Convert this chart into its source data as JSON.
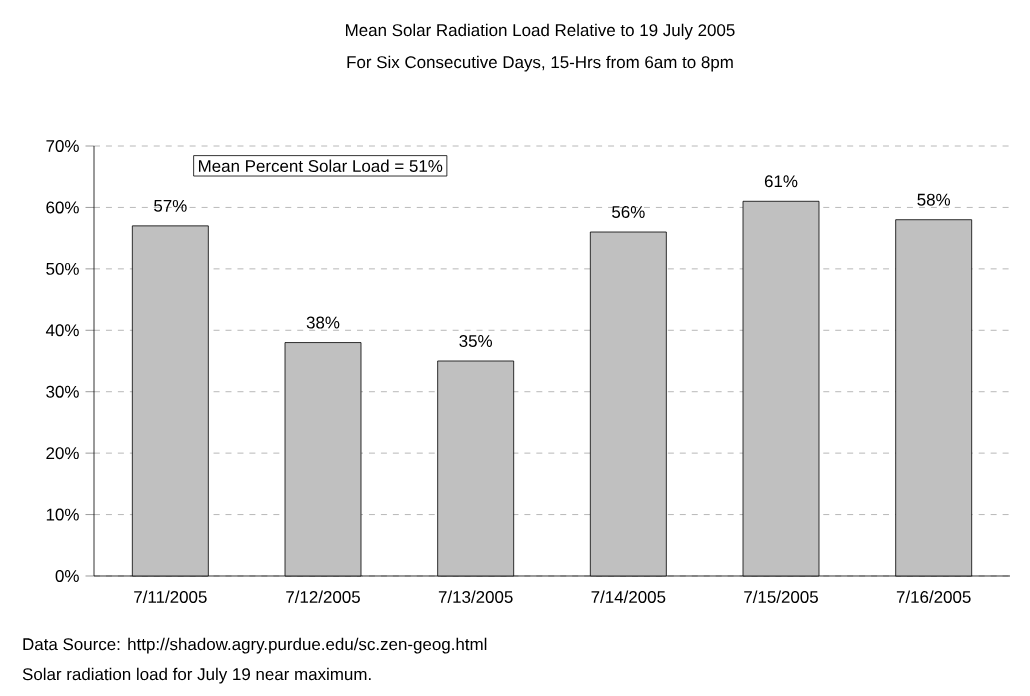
{
  "chart_data": {
    "type": "bar",
    "title": "Mean Solar Radiation Load Relative to 19 July 2005",
    "subtitle": "For Six Consecutive Days, 15-Hrs from 6am to 8pm",
    "categories": [
      "7/11/2005",
      "7/12/2005",
      "7/13/2005",
      "7/14/2005",
      "7/15/2005",
      "7/16/2005"
    ],
    "values": [
      57,
      38,
      35,
      56,
      61,
      58
    ],
    "value_labels": [
      "57%",
      "38%",
      "35%",
      "56%",
      "61%",
      "58%"
    ],
    "color": "#c0c0c0",
    "ylim": [
      0,
      70
    ],
    "yticks": [
      {
        "value": 0,
        "label": "0%"
      },
      {
        "value": 10,
        "label": "10%"
      },
      {
        "value": 20,
        "label": "20%"
      },
      {
        "value": 30,
        "label": "30%"
      },
      {
        "value": 40,
        "label": "40%"
      },
      {
        "value": 50,
        "label": "50%"
      },
      {
        "value": 60,
        "label": "60%"
      },
      {
        "value": 70,
        "label": "70%"
      }
    ],
    "grid": "y",
    "annotations": [
      "Mean Percent Solar Load = 51%",
      "Data Source: http://shadow.agry.purdue.edu/sc.zen-geog.html",
      "Solar radiation load for July 19 near maximum."
    ]
  }
}
